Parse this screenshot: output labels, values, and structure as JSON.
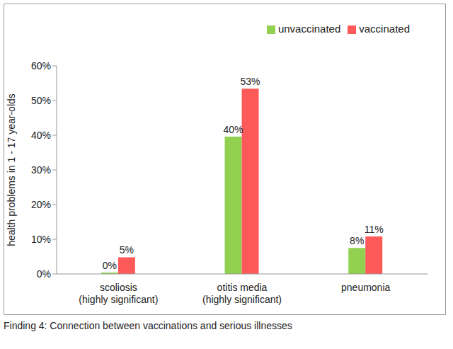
{
  "chart_data": {
    "type": "bar",
    "caption": "Finding 4: Connection between vaccinations and serious illnesses",
    "y_label": "health problems in 1 - 17 year-olds",
    "categories": [
      "scoliosis (highly significant)",
      "otitis media (highly significant)",
      "pneumonia"
    ],
    "series": [
      {
        "name": "unvaccinated",
        "color": "#92d050",
        "values": [
          0.4,
          39.6,
          7.5
        ],
        "value_labels": [
          "0%",
          "40%",
          "8%"
        ]
      },
      {
        "name": "vaccinated",
        "color": "#ff5a5a",
        "values": [
          4.8,
          53.4,
          10.8
        ],
        "value_labels": [
          "5%",
          "53%",
          "11%"
        ]
      }
    ],
    "ylim": [
      0,
      60
    ],
    "yticks": [
      {
        "value": 0,
        "label": "0%"
      },
      {
        "value": 10,
        "label": "10%"
      },
      {
        "value": 20,
        "label": "20%"
      },
      {
        "value": 30,
        "label": "30%"
      },
      {
        "value": 40,
        "label": "40%"
      },
      {
        "value": 50,
        "label": "50%"
      },
      {
        "value": 60,
        "label": "60%"
      }
    ],
    "grid": false,
    "legend": "top-right",
    "data_labels": true
  }
}
